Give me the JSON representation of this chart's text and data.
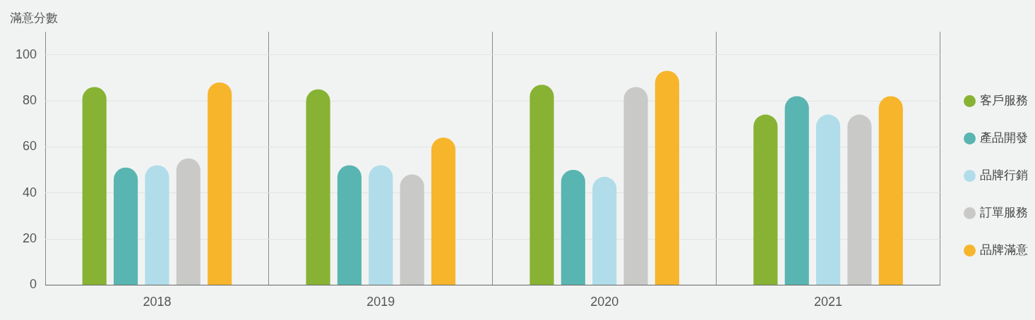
{
  "chart_data": {
    "type": "bar",
    "ylabel": "滿意分數",
    "categories": [
      "2018",
      "2019",
      "2020",
      "2021"
    ],
    "series": [
      {
        "name": "客戶服務",
        "color": "#88b233",
        "values": [
          86,
          85,
          87,
          74
        ]
      },
      {
        "name": "產品開發",
        "color": "#59b5b1",
        "values": [
          51,
          52,
          50,
          82
        ]
      },
      {
        "name": "品牌行銷",
        "color": "#b0dde9",
        "values": [
          52,
          52,
          47,
          74
        ]
      },
      {
        "name": "訂單服務",
        "color": "#c9cac8",
        "values": [
          55,
          48,
          86,
          74
        ]
      },
      {
        "name": "品牌滿意",
        "color": "#f7b52c",
        "values": [
          88,
          64,
          93,
          82
        ]
      }
    ],
    "ylim": [
      0,
      110
    ],
    "yticks": [
      0,
      20,
      40,
      60,
      80,
      100
    ],
    "grid": true,
    "legend": "right"
  }
}
